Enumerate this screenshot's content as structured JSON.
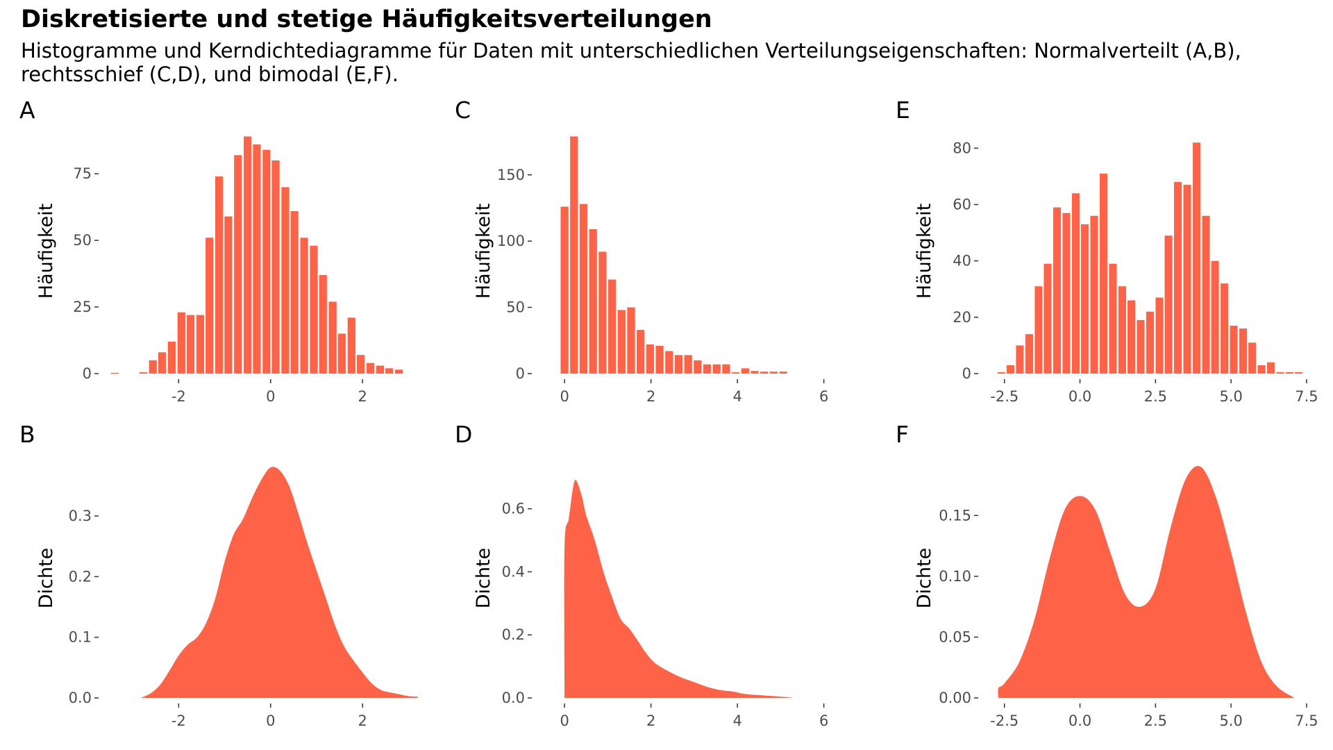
{
  "title": "Diskretisierte und stetige Häufigkeitsverteilungen",
  "subtitle": "Histogramme und Kerndichtediagramme für Daten mit unterschiedlichen Verteilungseigenschaften: Normalverteilt (A,B), rechtsschief (C,D), und bimodal (E,F).",
  "colors": {
    "fill": "#ff6347",
    "tick_text": "#4d4d4d",
    "tick_mark": "#333333"
  },
  "chart_data": [
    {
      "panel": "A",
      "type": "bar",
      "ylabel": "Häufigkeit",
      "xlim": [
        -3.5,
        3.25
      ],
      "ylim": [
        0,
        92
      ],
      "xticks": [
        -2,
        0,
        2
      ],
      "xtick_labels": [
        "-2",
        "0",
        "2"
      ],
      "yticks": [
        0,
        25,
        50,
        75
      ],
      "ytick_labels": [
        "0",
        "25",
        "50",
        "75"
      ],
      "bin_width": 0.206,
      "x": [
        -3.39,
        -2.77,
        -2.56,
        -2.36,
        -2.15,
        -1.94,
        -1.74,
        -1.53,
        -1.33,
        -1.12,
        -0.92,
        -0.71,
        -0.5,
        -0.3,
        -0.09,
        0.11,
        0.32,
        0.52,
        0.73,
        0.94,
        1.14,
        1.35,
        1.55,
        1.76,
        1.96,
        2.17,
        2.38,
        2.58,
        2.79,
        2.99,
        3.2
      ],
      "values": [
        0.3,
        0.5,
        5,
        8,
        12,
        23,
        22,
        22,
        51,
        74,
        59,
        82,
        89,
        86,
        84,
        80,
        70,
        61,
        51,
        48,
        37,
        27,
        15,
        21,
        7,
        4,
        3,
        2,
        1.5,
        0,
        0
      ]
    },
    {
      "panel": "C",
      "type": "bar",
      "ylabel": "Häufigkeit",
      "xlim": [
        -0.5,
        6.6
      ],
      "ylim": [
        0,
        185
      ],
      "xticks": [
        0,
        2,
        4,
        6
      ],
      "xtick_labels": [
        "0",
        "2",
        "4",
        "6"
      ],
      "yticks": [
        0,
        50,
        100,
        150
      ],
      "ytick_labels": [
        "0",
        "50",
        "100",
        "150"
      ],
      "bin_width": 0.22,
      "x": [
        0.0,
        0.22,
        0.44,
        0.66,
        0.88,
        1.1,
        1.32,
        1.54,
        1.76,
        1.98,
        2.2,
        2.42,
        2.64,
        2.86,
        3.08,
        3.3,
        3.52,
        3.74,
        3.96,
        4.18,
        4.4,
        4.62,
        4.84,
        5.06
      ],
      "values": [
        126,
        179,
        128,
        109,
        92,
        71,
        48,
        50,
        33,
        22,
        21,
        17,
        14,
        14,
        10,
        7,
        7,
        7,
        1,
        4,
        2,
        1.5,
        1.5,
        1.5
      ]
    },
    {
      "panel": "E",
      "type": "bar",
      "ylabel": "Häufigkeit",
      "xlim": [
        -3.0,
        7.8
      ],
      "ylim": [
        0,
        87
      ],
      "xticks": [
        -2.5,
        0.0,
        2.5,
        5.0,
        7.5
      ],
      "xtick_labels": [
        "-2.5",
        "0.0",
        "2.5",
        "5.0",
        "7.5"
      ],
      "yticks": [
        0,
        20,
        40,
        60,
        80
      ],
      "ytick_labels": [
        "0",
        "20",
        "40",
        "60",
        "80"
      ],
      "bin_width": 0.31,
      "x": [
        -2.6,
        -2.3,
        -1.99,
        -1.68,
        -1.37,
        -1.07,
        -0.76,
        -0.45,
        -0.14,
        0.16,
        0.47,
        0.78,
        1.09,
        1.4,
        1.7,
        2.01,
        2.32,
        2.63,
        2.93,
        3.24,
        3.55,
        3.86,
        4.17,
        4.47,
        4.78,
        5.09,
        5.4,
        5.7,
        6.01,
        6.32,
        6.63,
        6.94,
        7.24
      ],
      "values": [
        0.5,
        3,
        10,
        14,
        31,
        39,
        59,
        57,
        64,
        53,
        56,
        71,
        39,
        31,
        26,
        19,
        22,
        27,
        49,
        68,
        67,
        82,
        56,
        40,
        32,
        17,
        16,
        11,
        3,
        4,
        0.5,
        0.5,
        0.5
      ]
    },
    {
      "panel": "B",
      "type": "area",
      "ylabel": "Dichte",
      "xlim": [
        -3.5,
        3.25
      ],
      "ylim": [
        0,
        0.395
      ],
      "xticks": [
        -2,
        0,
        2
      ],
      "xtick_labels": [
        "-2",
        "0",
        "2"
      ],
      "yticks": [
        0,
        0.1,
        0.2,
        0.3
      ],
      "ytick_labels": [
        "0.0",
        "0.1",
        "0.2",
        "0.3"
      ],
      "x": [
        -2.82,
        -2.6,
        -2.4,
        -2.2,
        -2.0,
        -1.8,
        -1.6,
        -1.4,
        -1.2,
        -1.0,
        -0.8,
        -0.6,
        -0.4,
        -0.2,
        0.0,
        0.2,
        0.4,
        0.6,
        0.8,
        1.0,
        1.2,
        1.4,
        1.6,
        1.8,
        2.0,
        2.2,
        2.4,
        2.6,
        2.8,
        3.0,
        3.2
      ],
      "values": [
        0.0,
        0.008,
        0.022,
        0.045,
        0.07,
        0.088,
        0.1,
        0.124,
        0.165,
        0.225,
        0.27,
        0.295,
        0.33,
        0.36,
        0.38,
        0.375,
        0.35,
        0.305,
        0.255,
        0.21,
        0.165,
        0.12,
        0.085,
        0.062,
        0.042,
        0.024,
        0.013,
        0.009,
        0.006,
        0.003,
        0.002
      ]
    },
    {
      "panel": "D",
      "type": "area",
      "ylabel": "Dichte",
      "xlim": [
        -0.5,
        6.6
      ],
      "ylim": [
        0,
        0.76
      ],
      "xticks": [
        0,
        2,
        4,
        6
      ],
      "xtick_labels": [
        "0",
        "2",
        "4",
        "6"
      ],
      "yticks": [
        0,
        0.2,
        0.4,
        0.6
      ],
      "ytick_labels": [
        "0.0",
        "0.2",
        "0.4",
        "0.6"
      ],
      "x": [
        0.0,
        0.0,
        0.1,
        0.2,
        0.27,
        0.4,
        0.5,
        0.7,
        0.9,
        1.1,
        1.3,
        1.5,
        1.7,
        1.9,
        2.1,
        2.4,
        2.7,
        3.0,
        3.3,
        3.6,
        3.9,
        4.2,
        4.6,
        5.0,
        5.3
      ],
      "values": [
        0.0,
        0.48,
        0.57,
        0.67,
        0.69,
        0.64,
        0.58,
        0.5,
        0.4,
        0.32,
        0.25,
        0.22,
        0.18,
        0.14,
        0.11,
        0.085,
        0.065,
        0.05,
        0.035,
        0.025,
        0.02,
        0.012,
        0.008,
        0.004,
        0.0
      ]
    },
    {
      "panel": "F",
      "type": "area",
      "ylabel": "Dichte",
      "xlim": [
        -3.0,
        7.8
      ],
      "ylim": [
        0,
        0.197
      ],
      "xticks": [
        -2.5,
        0.0,
        2.5,
        5.0,
        7.5
      ],
      "xtick_labels": [
        "-2.5",
        "0.0",
        "2.5",
        "5.0",
        "7.5"
      ],
      "yticks": [
        0,
        0.05,
        0.1,
        0.15
      ],
      "ytick_labels": [
        "0.00",
        "0.05",
        "0.10",
        "0.15"
      ],
      "x": [
        -2.7,
        -2.7,
        -2.5,
        -2.0,
        -1.5,
        -1.0,
        -0.5,
        0.0,
        0.5,
        1.0,
        1.5,
        2.0,
        2.5,
        3.0,
        3.5,
        4.0,
        4.5,
        5.0,
        5.5,
        6.0,
        6.5,
        7.1
      ],
      "values": [
        0.0,
        0.008,
        0.012,
        0.03,
        0.065,
        0.115,
        0.155,
        0.166,
        0.155,
        0.12,
        0.085,
        0.075,
        0.09,
        0.14,
        0.18,
        0.19,
        0.165,
        0.12,
        0.07,
        0.03,
        0.01,
        0.0
      ]
    }
  ]
}
